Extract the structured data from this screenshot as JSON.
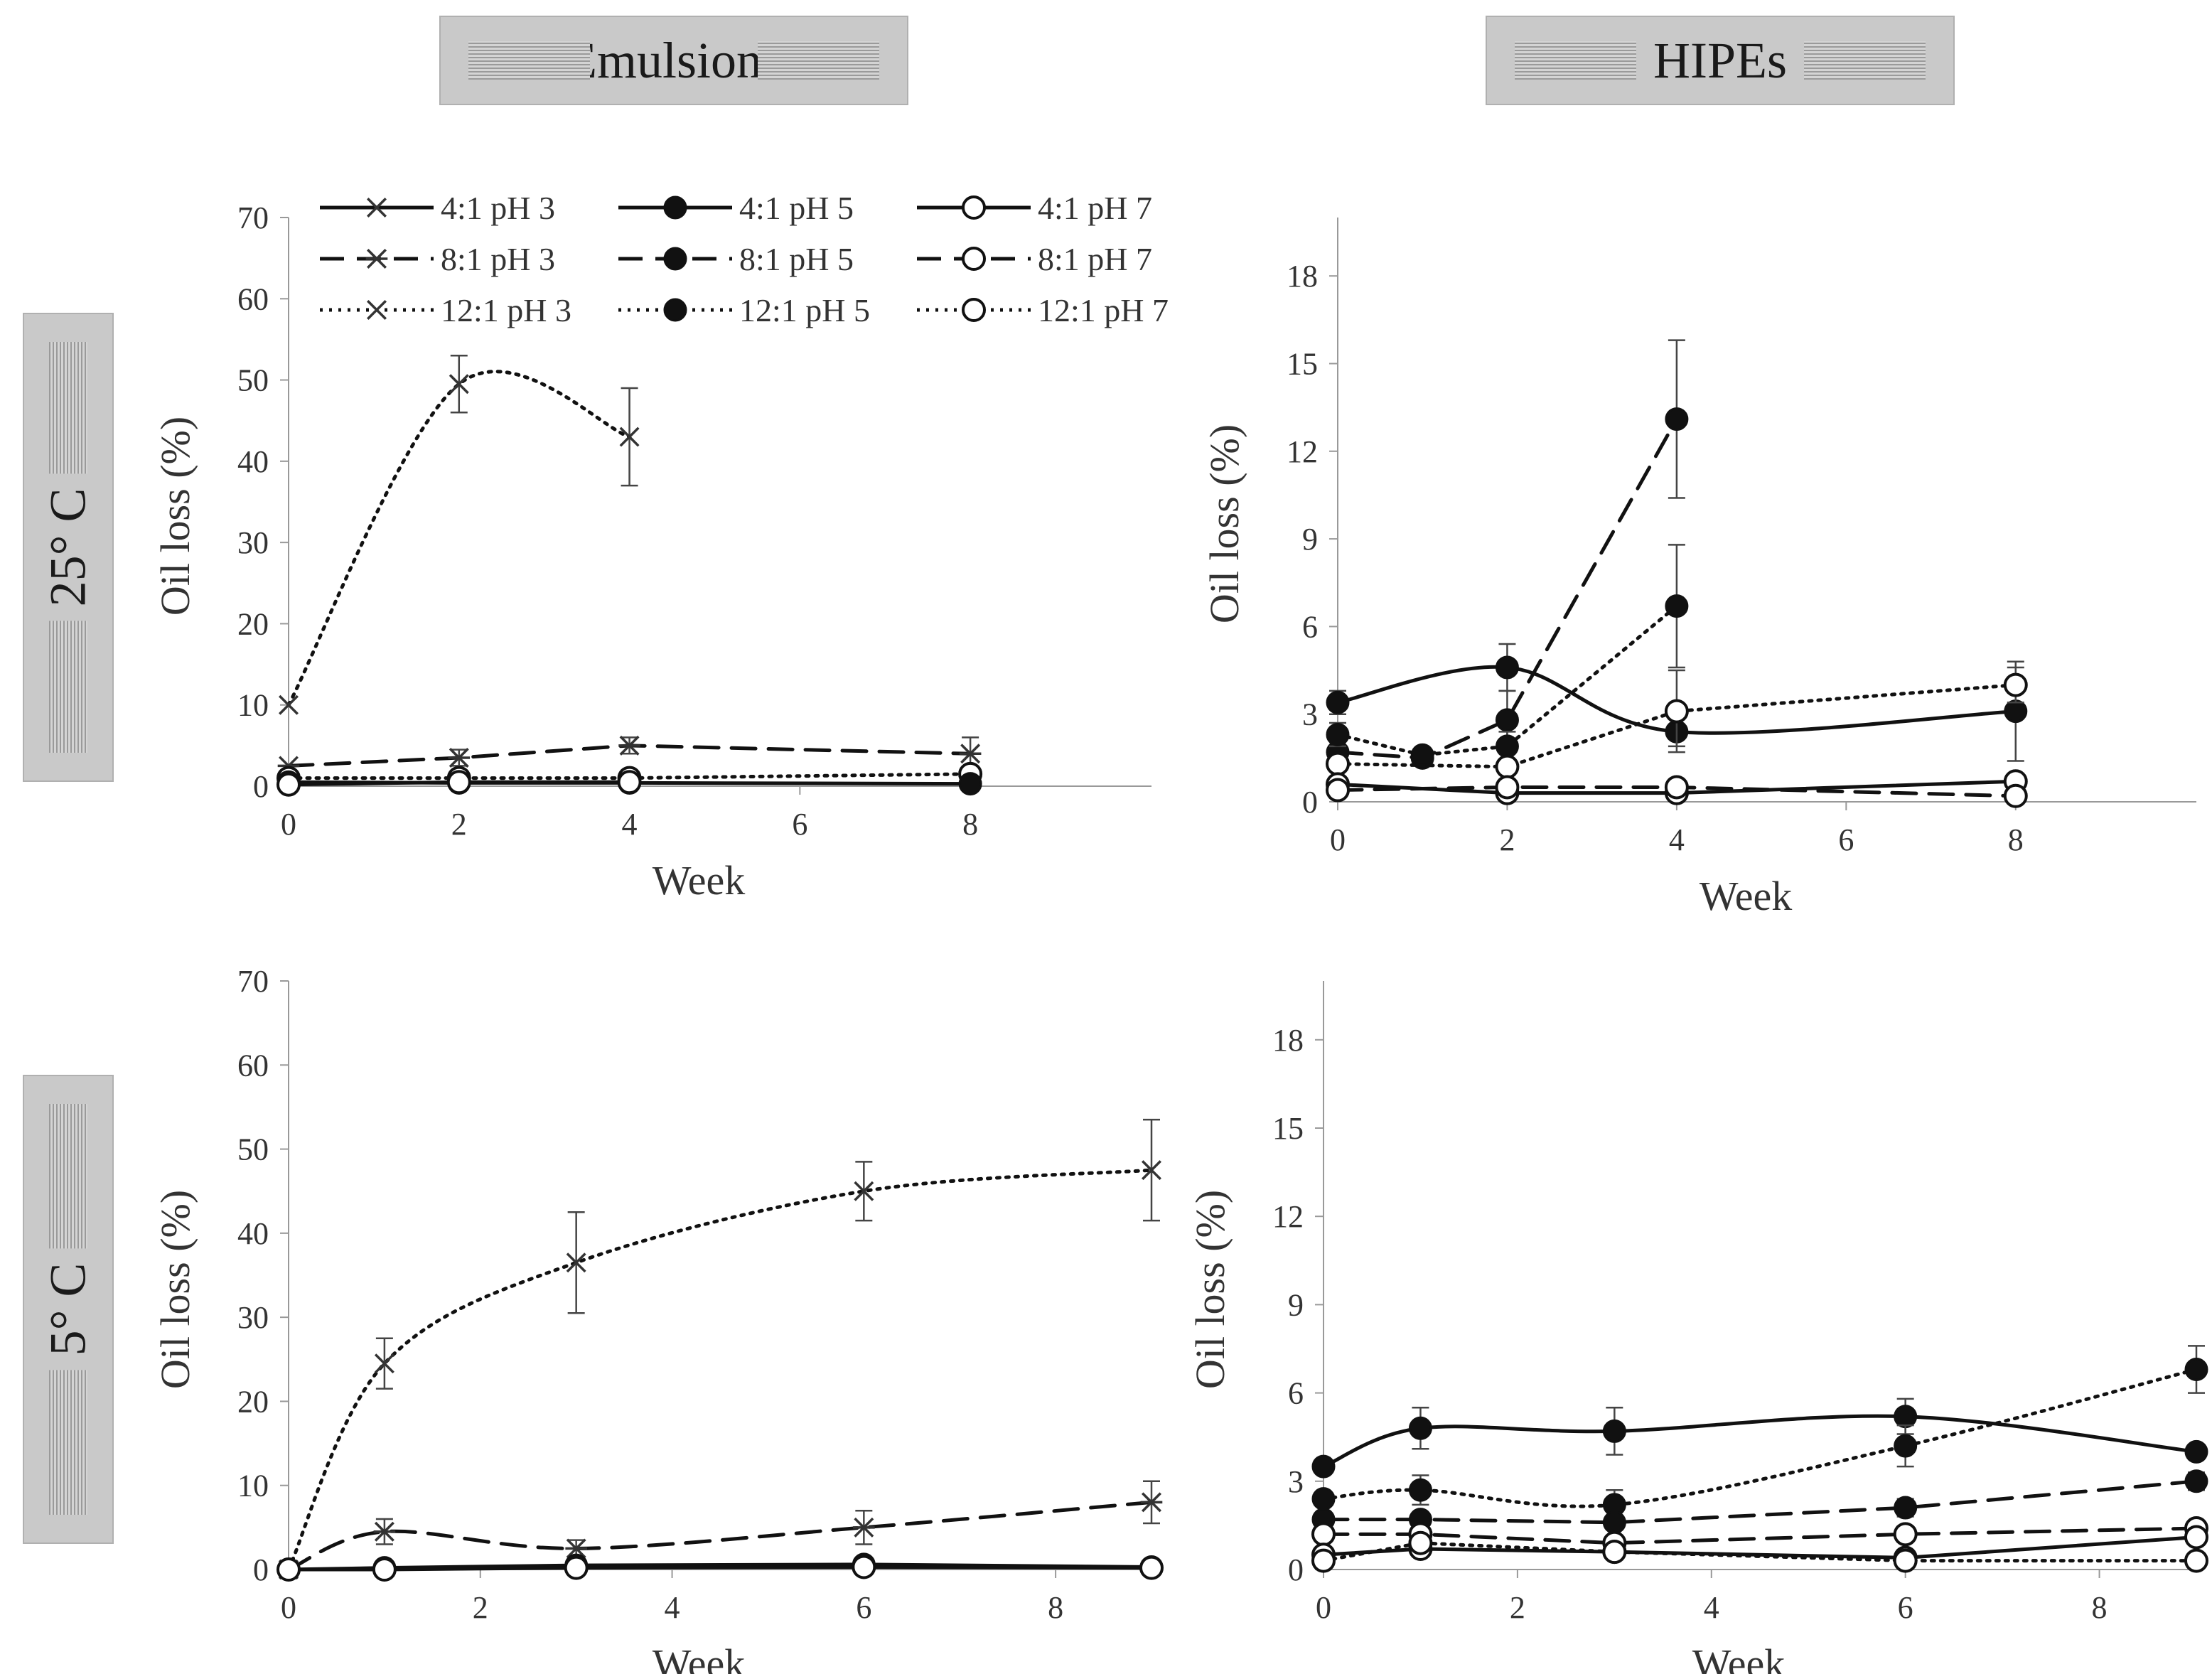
{
  "headers": {
    "col_emulsions": "Emulsions",
    "col_hipes": "HIPEs",
    "row_25": "25° C",
    "row_5": "5° C"
  },
  "legend": [
    {
      "label": "4:1 pH 3",
      "style": "solid",
      "marker": "x"
    },
    {
      "label": "4:1 pH 5",
      "style": "solid",
      "marker": "filled"
    },
    {
      "label": "4:1 pH 7",
      "style": "solid",
      "marker": "open"
    },
    {
      "label": "8:1 pH 3",
      "style": "dashed",
      "marker": "star"
    },
    {
      "label": "8:1 pH 5",
      "style": "dashed",
      "marker": "filled"
    },
    {
      "label": "8:1 pH 7",
      "style": "dashed",
      "marker": "open"
    },
    {
      "label": "12:1 pH 3",
      "style": "dotted",
      "marker": "x"
    },
    {
      "label": "12:1 pH 5",
      "style": "dotted",
      "marker": "filled"
    },
    {
      "label": "12:1 pH 7",
      "style": "dotted",
      "marker": "open"
    }
  ],
  "chart_data": [
    {
      "id": "emulsions-25",
      "type": "line",
      "xlabel": "Week",
      "ylabel": "Oil loss (%)",
      "xlim": [
        0,
        9
      ],
      "ylim": [
        0,
        70
      ],
      "xticks": [
        0,
        2,
        4,
        6,
        8
      ],
      "yticks": [
        0,
        10,
        20,
        30,
        40,
        50,
        60,
        70
      ],
      "series": [
        {
          "name": "12:1 pH 3",
          "style": "dotted",
          "marker": "x",
          "smooth": true,
          "x": [
            0,
            2,
            4
          ],
          "y": [
            10,
            49.5,
            43
          ],
          "err": [
            0,
            3.5,
            6
          ]
        },
        {
          "name": "8:1 pH 3",
          "style": "dashed",
          "marker": "star",
          "x": [
            0,
            2,
            4,
            8
          ],
          "y": [
            2.5,
            3.5,
            5,
            4
          ],
          "err": [
            0,
            1,
            1,
            2
          ]
        },
        {
          "name": "12:1 pH 7",
          "style": "dotted",
          "marker": "open",
          "x": [
            0,
            2,
            4,
            8
          ],
          "y": [
            1,
            1,
            1,
            1.5
          ],
          "err": [
            0,
            0,
            0,
            0
          ]
        },
        {
          "name": "4:1 pH 5",
          "style": "solid",
          "marker": "filled",
          "x": [
            0,
            2,
            4,
            8
          ],
          "y": [
            0.5,
            0.4,
            0.4,
            0.3
          ],
          "err": [
            0,
            0,
            0,
            0
          ]
        },
        {
          "name": "4:1 pH 7",
          "style": "solid",
          "marker": "open",
          "x": [
            0,
            2,
            4
          ],
          "y": [
            0.2,
            0.5,
            0.5
          ],
          "err": [
            0,
            0,
            0
          ]
        }
      ]
    },
    {
      "id": "hipes-25",
      "type": "line",
      "xlabel": "Week",
      "ylabel": "Oil loss (%)",
      "xlim": [
        0,
        9
      ],
      "ylim": [
        0,
        20
      ],
      "xticks": [
        0,
        2,
        4,
        6,
        8
      ],
      "yticks": [
        0,
        3,
        6,
        9,
        12,
        15,
        18
      ],
      "series": [
        {
          "name": "4:1 pH 5",
          "style": "solid",
          "marker": "filled",
          "smooth": true,
          "x": [
            0,
            2,
            4,
            8
          ],
          "y": [
            3.4,
            4.6,
            2.4,
            3.1
          ],
          "err": [
            0.4,
            0.8,
            0.5,
            1.7
          ]
        },
        {
          "name": "8:1 pH 5",
          "style": "dashed",
          "marker": "filled",
          "x": [
            0,
            1,
            2,
            4
          ],
          "y": [
            1.7,
            1.5,
            2.8,
            13.1
          ],
          "err": [
            0,
            0,
            1,
            2.7
          ]
        },
        {
          "name": "12:1 pH 5",
          "style": "dotted",
          "marker": "filled",
          "x": [
            0,
            1,
            2,
            4
          ],
          "y": [
            2.3,
            1.6,
            1.9,
            6.7
          ],
          "err": [
            0.4,
            0,
            0.5,
            2.1
          ]
        },
        {
          "name": "12:1 pH 7",
          "style": "dotted",
          "marker": "open",
          "x": [
            0,
            2,
            4,
            8
          ],
          "y": [
            1.3,
            1.2,
            3.1,
            4
          ],
          "err": [
            0,
            0,
            1.4,
            0.6
          ]
        },
        {
          "name": "4:1 pH 7",
          "style": "solid",
          "marker": "open",
          "x": [
            0,
            2,
            4,
            8
          ],
          "y": [
            0.6,
            0.3,
            0.3,
            0.7
          ],
          "err": [
            0,
            0,
            0,
            0
          ]
        },
        {
          "name": "8:1 pH 7",
          "style": "dashed",
          "marker": "open",
          "x": [
            0,
            2,
            4,
            8
          ],
          "y": [
            0.4,
            0.5,
            0.5,
            0.2
          ],
          "err": [
            0,
            0,
            0,
            0
          ]
        }
      ]
    },
    {
      "id": "emulsions-5",
      "type": "line",
      "xlabel": "Week",
      "ylabel": "Oil loss (%)",
      "xlim": [
        0,
        9
      ],
      "ylim": [
        0,
        70
      ],
      "xticks": [
        0,
        2,
        4,
        6,
        8
      ],
      "yticks": [
        0,
        10,
        20,
        30,
        40,
        50,
        60,
        70
      ],
      "series": [
        {
          "name": "12:1 pH 3",
          "style": "dotted",
          "marker": "x",
          "smooth": true,
          "x": [
            0,
            1,
            3,
            6,
            9
          ],
          "y": [
            0,
            24.5,
            36.5,
            45,
            47.5
          ],
          "err": [
            0,
            3,
            6,
            3.5,
            6
          ]
        },
        {
          "name": "8:1 pH 3",
          "style": "dashed",
          "marker": "star",
          "smooth": true,
          "x": [
            0,
            1,
            3,
            6,
            9
          ],
          "y": [
            0,
            4.5,
            2.5,
            5,
            8
          ],
          "err": [
            0,
            1.5,
            1,
            2,
            2.5
          ]
        },
        {
          "name": "4:1 pH 5",
          "style": "solid",
          "marker": "filled",
          "x": [
            0,
            1,
            3,
            6,
            9
          ],
          "y": [
            0,
            0.2,
            0.5,
            0.6,
            0.3
          ],
          "err": [
            0,
            0,
            0,
            0,
            0
          ]
        },
        {
          "name": "4:1 pH 7",
          "style": "solid",
          "marker": "open",
          "x": [
            0,
            1,
            3,
            6,
            9
          ],
          "y": [
            0,
            0,
            0.2,
            0.3,
            0.2
          ],
          "err": [
            0,
            0,
            0,
            0,
            0
          ]
        }
      ]
    },
    {
      "id": "hipes-5",
      "type": "line",
      "xlabel": "Week",
      "ylabel": "Oil loss (%)",
      "xlim": [
        0,
        9
      ],
      "ylim": [
        0,
        20
      ],
      "xticks": [
        0,
        2,
        4,
        6,
        8
      ],
      "yticks": [
        0,
        3,
        6,
        9,
        12,
        15,
        18
      ],
      "series": [
        {
          "name": "4:1 pH 5",
          "style": "solid",
          "marker": "filled",
          "smooth": true,
          "x": [
            0,
            1,
            3,
            6,
            9
          ],
          "y": [
            3.5,
            4.8,
            4.7,
            5.2,
            4
          ],
          "err": [
            0,
            0.7,
            0.8,
            0.6,
            0
          ]
        },
        {
          "name": "12:1 pH 5",
          "style": "dotted",
          "marker": "filled",
          "smooth": true,
          "x": [
            0,
            1,
            3,
            6,
            9
          ],
          "y": [
            2.4,
            2.7,
            2.2,
            4.2,
            6.8
          ],
          "err": [
            0,
            0.5,
            0.5,
            0.7,
            0.8
          ]
        },
        {
          "name": "8:1 pH 5",
          "style": "dashed",
          "marker": "filled",
          "x": [
            0,
            1,
            3,
            6,
            9
          ],
          "y": [
            1.7,
            1.7,
            1.6,
            2.1,
            3
          ],
          "err": [
            0,
            0,
            0,
            0.3,
            0.3
          ]
        },
        {
          "name": "8:1 pH 7",
          "style": "dashed",
          "marker": "open",
          "x": [
            0,
            1,
            3,
            6,
            9
          ],
          "y": [
            1.2,
            1.2,
            0.9,
            1.2,
            1.4
          ],
          "err": [
            0,
            0,
            0,
            0,
            0
          ]
        },
        {
          "name": "4:1 pH 7",
          "style": "solid",
          "marker": "open",
          "x": [
            0,
            1,
            3,
            6,
            9
          ],
          "y": [
            0.5,
            0.7,
            0.6,
            0.4,
            1.1
          ],
          "err": [
            0,
            0,
            0,
            0,
            0
          ]
        },
        {
          "name": "12:1 pH 7",
          "style": "dotted",
          "marker": "open",
          "x": [
            0,
            1,
            3,
            6,
            9
          ],
          "y": [
            0.3,
            0.9,
            0.6,
            0.3,
            0.3
          ],
          "err": [
            0,
            0,
            0,
            0,
            0
          ]
        }
      ]
    }
  ]
}
